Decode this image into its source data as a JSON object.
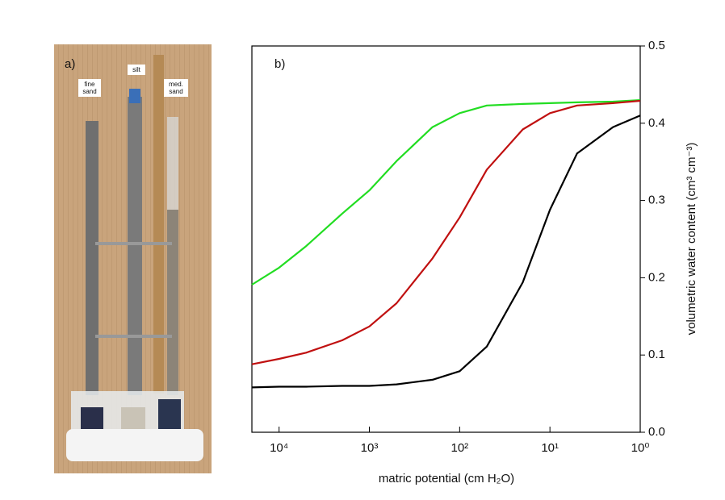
{
  "chart_data": {
    "type": "line",
    "panel_label": "b)",
    "x_label": "matric potential (cm H₂O)",
    "y_label": "volumetric water content (cm³ cm⁻³)",
    "x": [
      20000,
      10000,
      5000,
      2000,
      1000,
      500,
      200,
      100,
      50,
      20,
      10,
      5,
      2,
      1
    ],
    "series": [
      {
        "color": "#22dd22",
        "values": [
          0.191,
          0.213,
          0.241,
          0.283,
          0.313,
          0.351,
          0.395,
          0.413,
          0.423,
          0.425,
          0.426,
          0.427,
          0.428,
          0.43
        ]
      },
      {
        "color": "#c01010",
        "values": [
          0.088,
          0.095,
          0.103,
          0.119,
          0.137,
          0.167,
          0.225,
          0.278,
          0.34,
          0.392,
          0.413,
          0.423,
          0.426,
          0.429
        ]
      },
      {
        "color": "#000000",
        "values": [
          0.058,
          0.059,
          0.059,
          0.06,
          0.06,
          0.062,
          0.068,
          0.079,
          0.111,
          0.194,
          0.288,
          0.361,
          0.395,
          0.41
        ]
      }
    ],
    "xlim": [
      20000,
      1
    ],
    "xlog": true,
    "xticks": [
      {
        "value": 10000,
        "label": "10⁴"
      },
      {
        "value": 1000,
        "label": "10³"
      },
      {
        "value": 100,
        "label": "10²"
      },
      {
        "value": 10,
        "label": "10¹"
      },
      {
        "value": 1,
        "label": "10⁰"
      }
    ],
    "ylim": [
      0,
      0.5
    ],
    "yaxis_side": "right",
    "yticks": [
      {
        "value": 0,
        "label": "0.0"
      },
      0.1,
      0.2,
      0.3,
      0.4,
      0.5
    ]
  },
  "photo": {
    "panel_label": "a)",
    "labels": [
      "fine sand",
      "silt",
      "med. sand"
    ]
  }
}
